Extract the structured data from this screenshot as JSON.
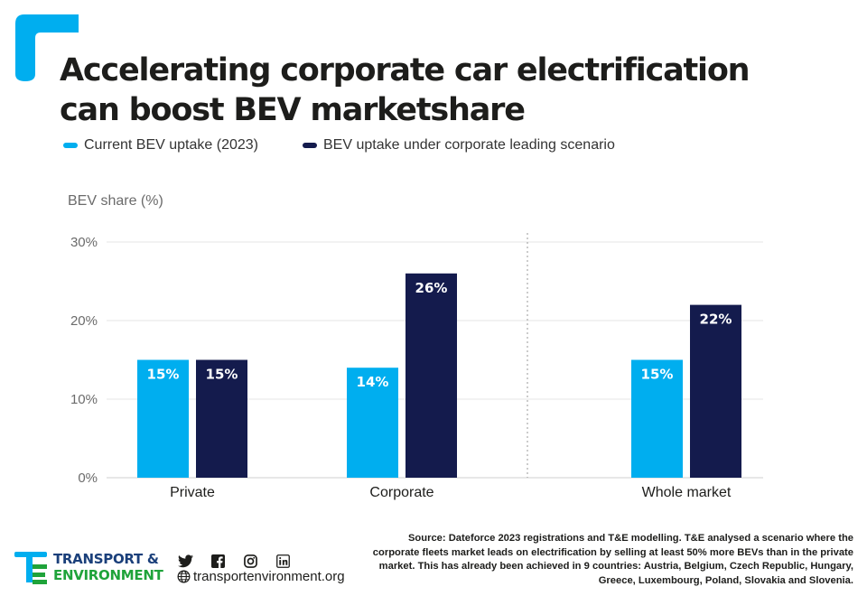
{
  "title": "Accelerating corporate car electrification can boost BEV marketshare",
  "colors": {
    "current": "#00aeef",
    "scenario": "#141b4d",
    "accent": "#00aeef",
    "grid": "#e6e6e6",
    "axis_text": "#6b6b6b"
  },
  "legend": {
    "items": [
      {
        "label": "Current BEV uptake (2023)",
        "color": "#00aeef"
      },
      {
        "label": "BEV uptake under corporate leading scenario",
        "color": "#141b4d"
      }
    ]
  },
  "chart_data": {
    "type": "bar",
    "ylabel": "BEV share (%)",
    "xlabel": "",
    "ylim": [
      0,
      30
    ],
    "yticks": [
      0,
      10,
      20,
      30
    ],
    "ytick_labels": [
      "0%",
      "10%",
      "20%",
      "30%"
    ],
    "grid": true,
    "categories": [
      "Private",
      "Corporate",
      "Whole market"
    ],
    "series": [
      {
        "name": "Current BEV uptake (2023)",
        "values": [
          15,
          14,
          15
        ],
        "labels": [
          "15%",
          "14%",
          "15%"
        ]
      },
      {
        "name": "BEV uptake under corporate leading scenario",
        "values": [
          15,
          26,
          22
        ],
        "labels": [
          "15%",
          "26%",
          "22%"
        ]
      }
    ],
    "separator_after_category": 1
  },
  "footer": {
    "logo_line1": "TRANSPORT &",
    "logo_line2": "ENVIRONMENT",
    "socials": [
      "twitter-icon",
      "facebook-icon",
      "instagram-icon",
      "linkedin-icon"
    ],
    "website": "transportenvironment.org",
    "source": "Source: Dateforce 2023 registrations and T&E modelling. T&E analysed a scenario where the corporate fleets market leads on electrification by selling at least 50% more BEVs than in the private market. This has already been achieved in 9 countries: Austria, Belgium, Czech Republic, Hungary, Greece, Luxembourg, Poland, Slovakia and Slovenia."
  }
}
